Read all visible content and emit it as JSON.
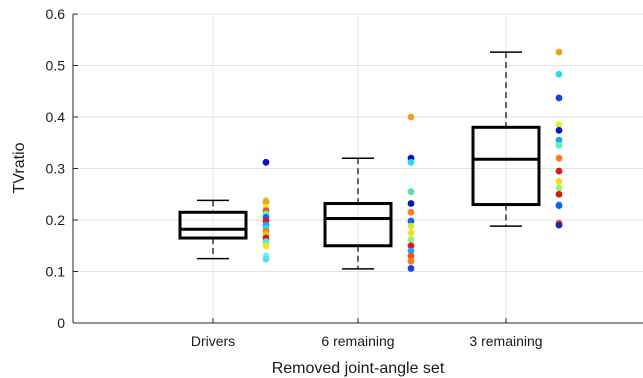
{
  "chart_data": {
    "type": "box",
    "xlabel": "Removed joint-angle set",
    "ylabel": "TVratio",
    "ylim": [
      0,
      0.6
    ],
    "yticks": [
      0,
      0.1,
      0.2,
      0.3,
      0.4,
      0.5,
      0.6
    ],
    "ytick_labels": [
      "0",
      "0.1",
      "0.2",
      "0.3",
      "0.4",
      "0.5",
      "0.6"
    ],
    "categories": [
      "Drivers",
      "6 remaining",
      "3 remaining"
    ],
    "grid": true,
    "boxes": [
      {
        "category": "Drivers",
        "whisker_low": 0.125,
        "q1": 0.165,
        "median": 0.182,
        "q3": 0.215,
        "whisker_high": 0.238
      },
      {
        "category": "6 remaining",
        "whisker_low": 0.105,
        "q1": 0.15,
        "median": 0.203,
        "q3": 0.232,
        "whisker_high": 0.32
      },
      {
        "category": "3 remaining",
        "whisker_low": 0.188,
        "q1": 0.23,
        "median": 0.318,
        "q3": 0.38,
        "whisker_high": 0.526
      }
    ],
    "points": [
      {
        "category": "Drivers",
        "values": [
          0.312,
          0.238,
          0.235,
          0.225,
          0.218,
          0.212,
          0.205,
          0.198,
          0.19,
          0.184,
          0.178,
          0.172,
          0.165,
          0.158,
          0.15,
          0.13,
          0.124
        ],
        "colors": [
          "#0a12c8",
          "#9ef07a",
          "#ff9a1a",
          "#e8e83a",
          "#ff4a10",
          "#5af0c0",
          "#1a5af5",
          "#d81a1a",
          "#1aa8f5",
          "#2ad8f0",
          "#ff7a18",
          "#f0c21a",
          "#cf1a1a",
          "#52e8d8",
          "#f5e81a",
          "#6af0f5",
          "#5ae0e8"
        ]
      },
      {
        "category": "6 remaining",
        "values": [
          0.4,
          0.32,
          0.312,
          0.255,
          0.232,
          0.215,
          0.198,
          0.188,
          0.175,
          0.162,
          0.15,
          0.14,
          0.13,
          0.12,
          0.106
        ],
        "colors": [
          "#f0a020",
          "#0a12c8",
          "#2ad8f0",
          "#5ae0a0",
          "#0a18b0",
          "#ff7a18",
          "#1a5af5",
          "#d0e83a",
          "#f5e01a",
          "#9ef07a",
          "#d81a1a",
          "#1aa8f5",
          "#ff4a10",
          "#ff7a18",
          "#1a40e8"
        ]
      },
      {
        "category": "3 remaining",
        "values": [
          0.526,
          0.483,
          0.437,
          0.385,
          0.374,
          0.355,
          0.345,
          0.32,
          0.295,
          0.275,
          0.262,
          0.25,
          0.23,
          0.228,
          0.194,
          0.19
        ],
        "colors": [
          "#f0a020",
          "#2ad8f0",
          "#1a40e8",
          "#e8f01a",
          "#0a12c8",
          "#1aa8f5",
          "#5af0c0",
          "#ff7a18",
          "#d81a1a",
          "#f0e01a",
          "#9ef07a",
          "#cf1a1a",
          "#52e8d8",
          "#1a5af5",
          "#ff4a10",
          "#1a28b8"
        ]
      }
    ]
  }
}
